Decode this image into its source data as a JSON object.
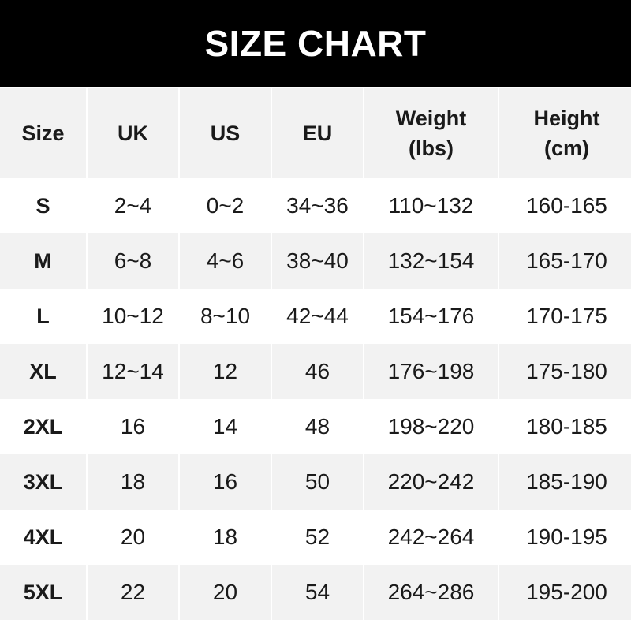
{
  "title": "SIZE CHART",
  "headers": [
    "Size",
    "UK",
    "US",
    "EU",
    "Weight\n(lbs)",
    "Height\n(cm)"
  ],
  "rows": [
    [
      "S",
      "2~4",
      "0~2",
      "34~36",
      "110~132",
      "160-165"
    ],
    [
      "M",
      "6~8",
      "4~6",
      "38~40",
      "132~154",
      "165-170"
    ],
    [
      "L",
      "10~12",
      "8~10",
      "42~44",
      "154~176",
      "170-175"
    ],
    [
      "XL",
      "12~14",
      "12",
      "46",
      "176~198",
      "175-180"
    ],
    [
      "2XL",
      "16",
      "14",
      "48",
      "198~220",
      "180-185"
    ],
    [
      "3XL",
      "18",
      "16",
      "50",
      "220~242",
      "185-190"
    ],
    [
      "4XL",
      "20",
      "18",
      "52",
      "242~264",
      "190-195"
    ],
    [
      "5XL",
      "22",
      "20",
      "54",
      "264~286",
      "195-200"
    ]
  ],
  "colors": {
    "banner": "#000000",
    "stripe": "#f2f2f2",
    "text": "#1a1a1a"
  }
}
